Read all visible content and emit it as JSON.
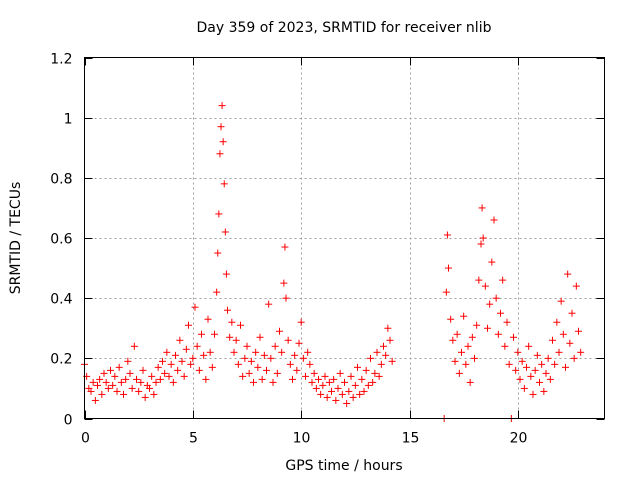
{
  "chart_data": {
    "type": "scatter",
    "title": "Day 359 of 2023, SRMTID for receiver nlib",
    "xlabel": "GPS time / hours",
    "ylabel": "SRMTID / TECUs",
    "xlim": [
      0,
      24
    ],
    "ylim": [
      0,
      1.2
    ],
    "x_ticks": [
      0,
      5,
      10,
      15,
      20
    ],
    "x_tick_labels": [
      "0",
      "5",
      "10",
      "15",
      "20"
    ],
    "y_ticks": [
      0,
      0.2,
      0.4,
      0.6,
      0.8,
      1.0,
      1.2
    ],
    "y_tick_labels": [
      "0",
      "0.2",
      "0.4",
      "0.6",
      "0.8",
      "1",
      "1.2"
    ],
    "grid": true,
    "marker": "+",
    "color": "#ff0000",
    "series": [
      {
        "name": "nlib",
        "points": [
          [
            0.0,
            0.18
          ],
          [
            0.1,
            0.14
          ],
          [
            0.2,
            0.1
          ],
          [
            0.3,
            0.09
          ],
          [
            0.4,
            0.12
          ],
          [
            0.5,
            0.06
          ],
          [
            0.6,
            0.11
          ],
          [
            0.7,
            0.13
          ],
          [
            0.8,
            0.08
          ],
          [
            0.9,
            0.15
          ],
          [
            1.0,
            0.12
          ],
          [
            1.1,
            0.1
          ],
          [
            1.2,
            0.16
          ],
          [
            1.3,
            0.11
          ],
          [
            1.4,
            0.14
          ],
          [
            1.5,
            0.09
          ],
          [
            1.6,
            0.17
          ],
          [
            1.7,
            0.12
          ],
          [
            1.8,
            0.08
          ],
          [
            1.9,
            0.13
          ],
          [
            2.0,
            0.19
          ],
          [
            2.1,
            0.15
          ],
          [
            2.2,
            0.1
          ],
          [
            2.3,
            0.24
          ],
          [
            2.4,
            0.13
          ],
          [
            2.5,
            0.09
          ],
          [
            2.6,
            0.12
          ],
          [
            2.7,
            0.16
          ],
          [
            2.8,
            0.07
          ],
          [
            2.9,
            0.11
          ],
          [
            3.0,
            0.1
          ],
          [
            3.1,
            0.14
          ],
          [
            3.2,
            0.08
          ],
          [
            3.3,
            0.12
          ],
          [
            3.4,
            0.17
          ],
          [
            3.5,
            0.13
          ],
          [
            3.6,
            0.19
          ],
          [
            3.7,
            0.15
          ],
          [
            3.8,
            0.22
          ],
          [
            3.9,
            0.14
          ],
          [
            4.0,
            0.18
          ],
          [
            4.1,
            0.12
          ],
          [
            4.2,
            0.21
          ],
          [
            4.3,
            0.16
          ],
          [
            4.4,
            0.26
          ],
          [
            4.5,
            0.19
          ],
          [
            4.6,
            0.14
          ],
          [
            4.7,
            0.23
          ],
          [
            4.8,
            0.31
          ],
          [
            4.9,
            0.18
          ],
          [
            5.0,
            0.2
          ],
          [
            5.1,
            0.37
          ],
          [
            5.2,
            0.24
          ],
          [
            5.3,
            0.16
          ],
          [
            5.4,
            0.28
          ],
          [
            5.5,
            0.21
          ],
          [
            5.6,
            0.13
          ],
          [
            5.7,
            0.33
          ],
          [
            5.8,
            0.22
          ],
          [
            5.9,
            0.17
          ],
          [
            6.0,
            0.28
          ],
          [
            6.1,
            0.42
          ],
          [
            6.15,
            0.55
          ],
          [
            6.2,
            0.68
          ],
          [
            6.25,
            0.88
          ],
          [
            6.3,
            0.97
          ],
          [
            6.35,
            1.04
          ],
          [
            6.4,
            0.92
          ],
          [
            6.45,
            0.78
          ],
          [
            6.5,
            0.62
          ],
          [
            6.55,
            0.48
          ],
          [
            6.6,
            0.36
          ],
          [
            6.7,
            0.27
          ],
          [
            6.8,
            0.32
          ],
          [
            6.9,
            0.22
          ],
          [
            7.0,
            0.26
          ],
          [
            7.1,
            0.18
          ],
          [
            7.2,
            0.31
          ],
          [
            7.3,
            0.14
          ],
          [
            7.4,
            0.2
          ],
          [
            7.5,
            0.24
          ],
          [
            7.6,
            0.15
          ],
          [
            7.7,
            0.19
          ],
          [
            7.8,
            0.12
          ],
          [
            7.9,
            0.22
          ],
          [
            8.0,
            0.17
          ],
          [
            8.1,
            0.27
          ],
          [
            8.2,
            0.13
          ],
          [
            8.3,
            0.21
          ],
          [
            8.4,
            0.16
          ],
          [
            8.5,
            0.38
          ],
          [
            8.6,
            0.2
          ],
          [
            8.7,
            0.12
          ],
          [
            8.8,
            0.24
          ],
          [
            8.9,
            0.15
          ],
          [
            9.0,
            0.29
          ],
          [
            9.1,
            0.22
          ],
          [
            9.2,
            0.45
          ],
          [
            9.25,
            0.57
          ],
          [
            9.3,
            0.4
          ],
          [
            9.4,
            0.26
          ],
          [
            9.5,
            0.18
          ],
          [
            9.6,
            0.13
          ],
          [
            9.7,
            0.21
          ],
          [
            9.8,
            0.16
          ],
          [
            9.9,
            0.25
          ],
          [
            10.0,
            0.32
          ],
          [
            10.1,
            0.2
          ],
          [
            10.2,
            0.14
          ],
          [
            10.3,
            0.22
          ],
          [
            10.4,
            0.18
          ],
          [
            10.5,
            0.12
          ],
          [
            10.6,
            0.15
          ],
          [
            10.7,
            0.1
          ],
          [
            10.8,
            0.13
          ],
          [
            10.9,
            0.08
          ],
          [
            11.0,
            0.11
          ],
          [
            11.1,
            0.14
          ],
          [
            11.2,
            0.07
          ],
          [
            11.3,
            0.12
          ],
          [
            11.4,
            0.09
          ],
          [
            11.5,
            0.13
          ],
          [
            11.6,
            0.06
          ],
          [
            11.7,
            0.1
          ],
          [
            11.8,
            0.15
          ],
          [
            11.9,
            0.08
          ],
          [
            12.0,
            0.12
          ],
          [
            12.1,
            0.05
          ],
          [
            12.2,
            0.09
          ],
          [
            12.3,
            0.14
          ],
          [
            12.4,
            0.07
          ],
          [
            12.5,
            0.11
          ],
          [
            12.6,
            0.17
          ],
          [
            12.7,
            0.08
          ],
          [
            12.8,
            0.13
          ],
          [
            12.9,
            0.09
          ],
          [
            13.0,
            0.16
          ],
          [
            13.1,
            0.11
          ],
          [
            13.2,
            0.2
          ],
          [
            13.3,
            0.12
          ],
          [
            13.4,
            0.15
          ],
          [
            13.5,
            0.22
          ],
          [
            13.6,
            0.14
          ],
          [
            13.7,
            0.18
          ],
          [
            13.8,
            0.24
          ],
          [
            13.9,
            0.21
          ],
          [
            14.0,
            0.3
          ],
          [
            14.1,
            0.26
          ],
          [
            14.2,
            0.19
          ],
          [
            16.6,
            0.0
          ],
          [
            16.7,
            0.42
          ],
          [
            16.75,
            0.61
          ],
          [
            16.8,
            0.5
          ],
          [
            16.9,
            0.33
          ],
          [
            17.0,
            0.26
          ],
          [
            17.1,
            0.19
          ],
          [
            17.2,
            0.28
          ],
          [
            17.3,
            0.15
          ],
          [
            17.4,
            0.22
          ],
          [
            17.5,
            0.34
          ],
          [
            17.6,
            0.18
          ],
          [
            17.7,
            0.24
          ],
          [
            17.8,
            0.12
          ],
          [
            17.9,
            0.27
          ],
          [
            18.0,
            0.2
          ],
          [
            18.1,
            0.31
          ],
          [
            18.2,
            0.46
          ],
          [
            18.3,
            0.58
          ],
          [
            18.35,
            0.7
          ],
          [
            18.4,
            0.6
          ],
          [
            18.5,
            0.44
          ],
          [
            18.6,
            0.3
          ],
          [
            18.7,
            0.38
          ],
          [
            18.8,
            0.52
          ],
          [
            18.9,
            0.66
          ],
          [
            19.0,
            0.4
          ],
          [
            19.1,
            0.28
          ],
          [
            19.2,
            0.35
          ],
          [
            19.3,
            0.46
          ],
          [
            19.4,
            0.24
          ],
          [
            19.5,
            0.32
          ],
          [
            19.6,
            0.18
          ],
          [
            19.7,
            0.0
          ],
          [
            19.8,
            0.27
          ],
          [
            19.9,
            0.16
          ],
          [
            20.0,
            0.22
          ],
          [
            20.1,
            0.13
          ],
          [
            20.2,
            0.19
          ],
          [
            20.3,
            0.1
          ],
          [
            20.4,
            0.17
          ],
          [
            20.5,
            0.24
          ],
          [
            20.6,
            0.14
          ],
          [
            20.7,
            0.08
          ],
          [
            20.8,
            0.16
          ],
          [
            20.9,
            0.21
          ],
          [
            21.0,
            0.12
          ],
          [
            21.1,
            0.18
          ],
          [
            21.2,
            0.09
          ],
          [
            21.3,
            0.15
          ],
          [
            21.4,
            0.2
          ],
          [
            21.5,
            0.13
          ],
          [
            21.6,
            0.26
          ],
          [
            21.7,
            0.18
          ],
          [
            21.8,
            0.32
          ],
          [
            21.9,
            0.22
          ],
          [
            22.0,
            0.39
          ],
          [
            22.1,
            0.28
          ],
          [
            22.2,
            0.17
          ],
          [
            22.3,
            0.48
          ],
          [
            22.4,
            0.25
          ],
          [
            22.5,
            0.35
          ],
          [
            22.6,
            0.2
          ],
          [
            22.7,
            0.44
          ],
          [
            22.8,
            0.29
          ],
          [
            22.9,
            0.22
          ]
        ]
      }
    ]
  }
}
